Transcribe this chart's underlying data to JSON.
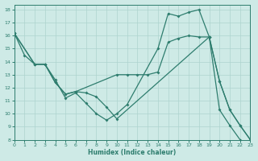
{
  "xlabel": "Humidex (Indice chaleur)",
  "xlim": [
    0,
    23
  ],
  "ylim": [
    8,
    18.4
  ],
  "xtick_labels": [
    "0",
    "1",
    "2",
    "3",
    "4",
    "5",
    "6",
    "7",
    "8",
    "9",
    "10",
    "11",
    "12",
    "13",
    "14",
    "15",
    "16",
    "17",
    "18",
    "19",
    "20",
    "21",
    "22",
    "23"
  ],
  "xticks": [
    0,
    1,
    2,
    3,
    4,
    5,
    6,
    7,
    8,
    9,
    10,
    11,
    12,
    13,
    14,
    15,
    16,
    17,
    18,
    19,
    20,
    21,
    22,
    23
  ],
  "yticks": [
    8,
    9,
    10,
    11,
    12,
    13,
    14,
    15,
    16,
    17,
    18
  ],
  "line_color": "#2e7d6e",
  "bg_color": "#ceeae6",
  "grid_color": "#aed4ce",
  "line1_x": [
    0,
    1,
    2,
    3,
    4,
    5,
    6,
    7,
    8,
    9,
    10,
    11,
    14,
    15,
    16,
    17,
    18,
    19,
    20,
    21,
    22
  ],
  "line1_y": [
    16.2,
    14.5,
    13.8,
    13.8,
    12.6,
    11.2,
    11.6,
    10.8,
    10.0,
    9.5,
    10.0,
    10.7,
    15.0,
    17.7,
    17.5,
    17.8,
    18.0,
    15.9,
    10.3,
    9.1,
    8.0
  ],
  "line2_x": [
    0,
    2,
    3,
    4,
    5,
    6,
    7,
    8,
    9,
    10,
    19,
    20,
    21,
    22,
    23
  ],
  "line2_y": [
    16.2,
    13.8,
    13.8,
    12.4,
    11.5,
    11.7,
    11.6,
    11.3,
    10.5,
    9.6,
    15.9,
    12.5,
    10.3,
    9.1,
    8.0
  ],
  "line3_x": [
    0,
    2,
    3,
    4,
    5,
    6,
    10,
    11,
    12,
    13,
    14,
    15,
    16,
    17,
    18,
    19,
    20,
    21,
    22,
    23
  ],
  "line3_y": [
    16.2,
    13.8,
    13.8,
    12.4,
    11.5,
    11.7,
    13.0,
    13.0,
    13.0,
    13.0,
    13.2,
    15.5,
    15.8,
    16.0,
    15.9,
    15.9,
    12.5,
    10.3,
    9.1,
    8.0
  ]
}
